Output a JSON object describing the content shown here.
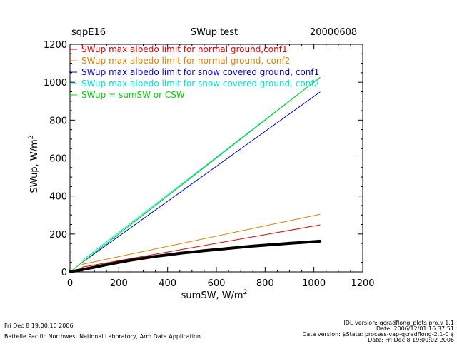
{
  "header": {
    "site": "sqpE16",
    "title": "SWup test",
    "date": "20000608"
  },
  "footer": {
    "left_line1": "Fri Dec  8 19:00:10 2006",
    "left_line2": "Battelle Pacific Northwest National Laboratory, Arm Data Application",
    "right_line1": "IDL version: qcradflong_plots.pro,v 1.1",
    "right_line2": "Date: 2006/12/01 16:37:51",
    "right_line3": "Data version: $State: process-vap-qcradflong-2.1-0 $",
    "right_line4": "Date: Fri Dec  8 19:00:02 2006"
  },
  "chart_data": {
    "type": "line",
    "title": "SWup test",
    "xlabel": "sumSW, W/m",
    "xlabel_sup": "2",
    "ylabel": "SWup, W/m",
    "ylabel_sup": "2",
    "xlim": [
      0,
      1200
    ],
    "ylim": [
      0,
      1200
    ],
    "xticks": [
      "0",
      "200",
      "400",
      "600",
      "800",
      "1000",
      "1200"
    ],
    "yticks": [
      "0",
      "200",
      "400",
      "600",
      "800",
      "1000",
      "1200"
    ],
    "grid": false,
    "legend_position": "top-left",
    "series": [
      {
        "name": "SWup max albedo limit for normal ground,conf1",
        "color": "#e00000",
        "x": [
          50,
          1025
        ],
        "y": [
          25,
          248
        ]
      },
      {
        "name": "SWup max albedo limit for normal ground, conf2",
        "color": "#e08000",
        "x": [
          50,
          1025
        ],
        "y": [
          40,
          304
        ]
      },
      {
        "name": "SWup max albedo limit for snow covered ground, conf1",
        "color": "#0000d0",
        "x": [
          50,
          1025
        ],
        "y": [
          50,
          948
        ]
      },
      {
        "name": "SWup max albedo limit for snow covered ground, conf2",
        "color": "#00e0e0",
        "x": [
          50,
          1025
        ],
        "y": [
          60,
          1025
        ]
      },
      {
        "name": "SWup = sumSW or CSW",
        "color": "#00d000",
        "x": [
          0,
          1025
        ],
        "y": [
          0,
          1025
        ]
      },
      {
        "name": "",
        "color": "#000000",
        "x": [
          0,
          50,
          100,
          150,
          200,
          250,
          300,
          350,
          400,
          450,
          500,
          550,
          600,
          650,
          700,
          750,
          800,
          850,
          900,
          950,
          1000,
          1025
        ],
        "y": [
          0,
          12,
          25,
          38,
          50,
          62,
          72,
          82,
          90,
          98,
          105,
          112,
          118,
          124,
          130,
          136,
          141,
          146,
          151,
          155,
          160,
          162
        ]
      }
    ]
  }
}
